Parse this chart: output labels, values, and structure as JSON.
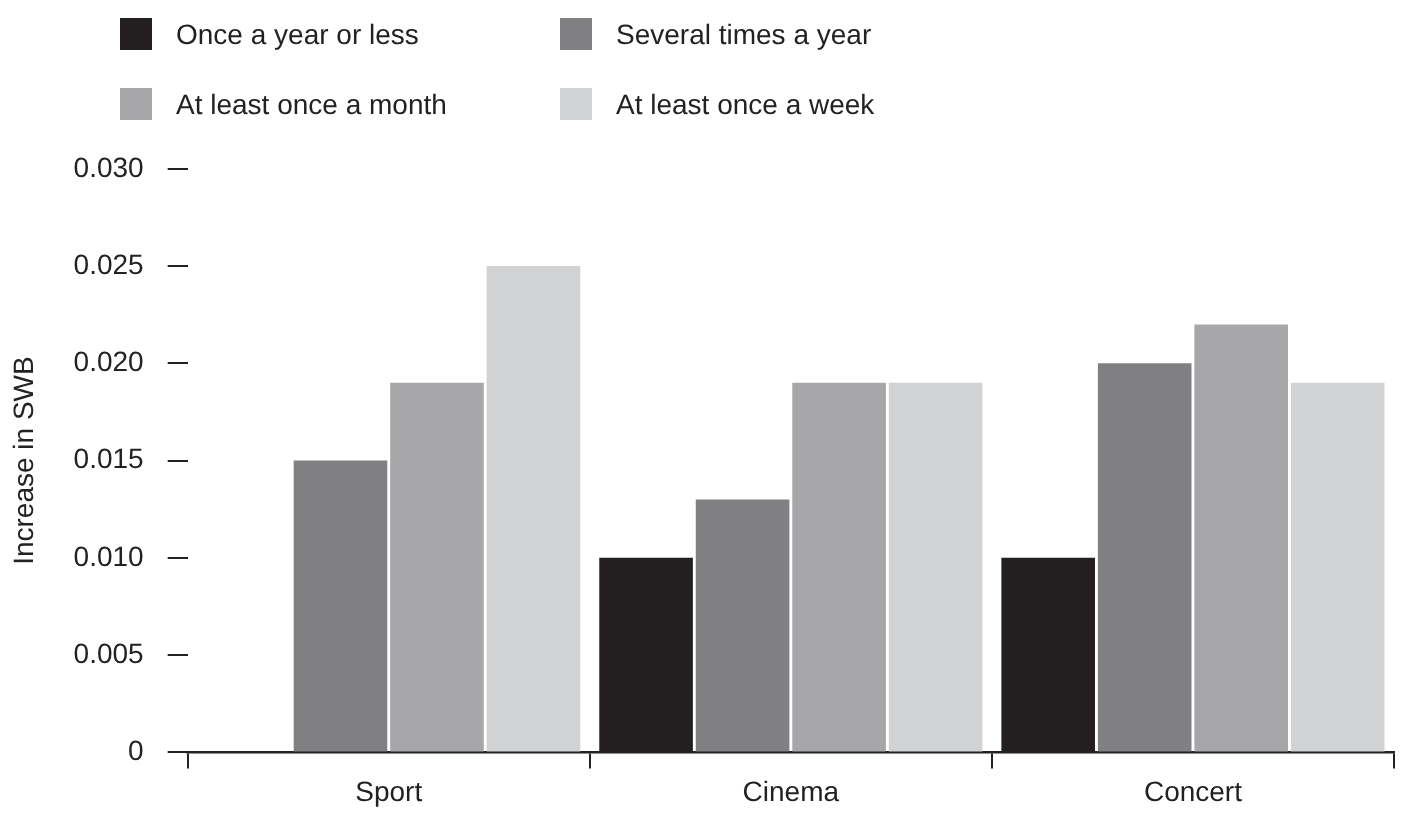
{
  "chart_data": {
    "type": "bar",
    "ylabel": "Increase in SWB",
    "categories": [
      "Sport",
      "Cinema",
      "Concert"
    ],
    "series": [
      {
        "name": "Once a year or less",
        "color": "#231f20",
        "values": [
          null,
          0.01,
          0.01
        ]
      },
      {
        "name": "Several times a year",
        "color": "#808083",
        "values": [
          0.015,
          0.013,
          0.02
        ]
      },
      {
        "name": "At least once a month",
        "color": "#a7a7aa",
        "values": [
          0.019,
          0.019,
          0.022
        ]
      },
      {
        "name": "At least once a week",
        "color": "#d1d2d4",
        "values": [
          0.025,
          0.019,
          0.019
        ]
      }
    ],
    "ylim": [
      0,
      0.03
    ],
    "yticks": [
      0,
      {
        "value": 0.005,
        "label": "0.005"
      },
      {
        "value": 0.01,
        "label": "0.010"
      },
      {
        "value": 0.015,
        "label": "0.015"
      },
      {
        "value": 0.02,
        "label": "0.020"
      },
      {
        "value": 0.025,
        "label": "0.025"
      },
      {
        "value": 0.03,
        "label": "0.030"
      }
    ],
    "grid": false,
    "legend": "top left"
  }
}
